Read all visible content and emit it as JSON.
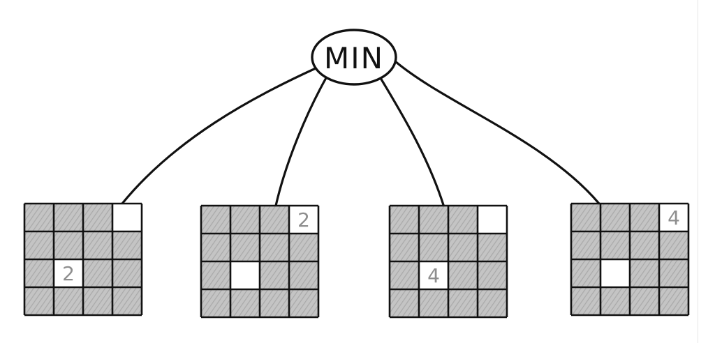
{
  "root": {
    "label": "MIN"
  },
  "colors": {
    "stroke": "#111111",
    "shade": "#bdbdbd",
    "empty": "#ffffff",
    "number": "#8e8e8e"
  },
  "boards": [
    {
      "name": "board-1",
      "cells": [
        [
          "s",
          "s",
          "s",
          "e"
        ],
        [
          "s",
          "s",
          "s",
          "s"
        ],
        [
          "s",
          "2",
          "s",
          "s"
        ],
        [
          "s",
          "s",
          "s",
          "s"
        ]
      ]
    },
    {
      "name": "board-2",
      "cells": [
        [
          "s",
          "s",
          "s",
          "2"
        ],
        [
          "s",
          "s",
          "s",
          "s"
        ],
        [
          "s",
          "e",
          "s",
          "s"
        ],
        [
          "s",
          "s",
          "s",
          "s"
        ]
      ]
    },
    {
      "name": "board-3",
      "cells": [
        [
          "s",
          "s",
          "s",
          "e"
        ],
        [
          "s",
          "s",
          "s",
          "s"
        ],
        [
          "s",
          "4",
          "s",
          "s"
        ],
        [
          "s",
          "s",
          "s",
          "s"
        ]
      ]
    },
    {
      "name": "board-4",
      "cells": [
        [
          "s",
          "s",
          "s",
          "4"
        ],
        [
          "s",
          "s",
          "s",
          "s"
        ],
        [
          "s",
          "e",
          "s",
          "s"
        ],
        [
          "s",
          "s",
          "s",
          "s"
        ]
      ]
    }
  ]
}
